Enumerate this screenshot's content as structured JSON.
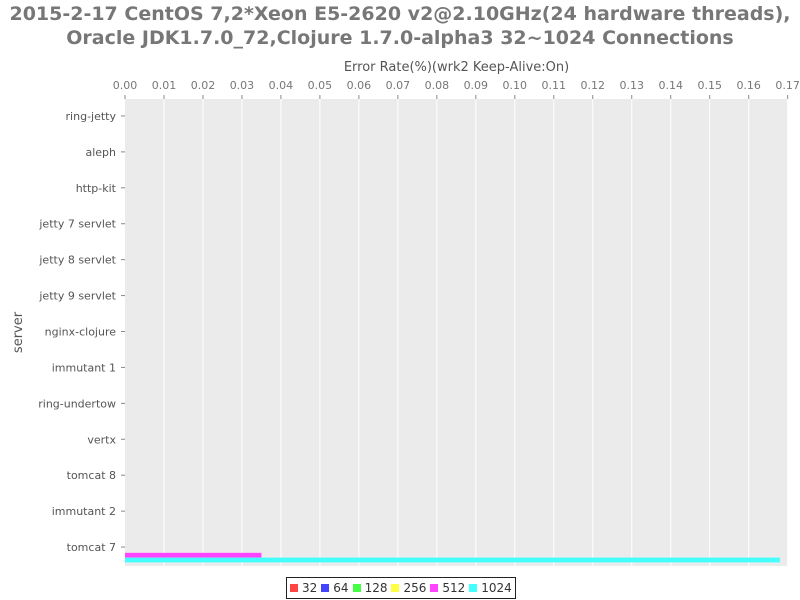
{
  "chart_data": {
    "type": "bar",
    "orientation": "horizontal",
    "title": "2015-2-17 CentOS 7,2*Xeon E5-2620 v2@2.10GHz(24 hardware threads),",
    "subtitle": "Oracle JDK1.7.0_72,Clojure 1.7.0-alpha3 32~1024 Connections",
    "xlabel": "Error Rate(%)(wrk2 Keep-Alive:On)",
    "ylabel": "server",
    "xlim": [
      0,
      0.17
    ],
    "xticks": [
      "0.00",
      "0.01",
      "0.02",
      "0.03",
      "0.04",
      "0.05",
      "0.06",
      "0.07",
      "0.08",
      "0.09",
      "0.10",
      "0.11",
      "0.12",
      "0.13",
      "0.14",
      "0.15",
      "0.16",
      "0.17"
    ],
    "xaxis_position": "top",
    "grid": true,
    "legend_position": "bottom",
    "categories": [
      "ring-jetty",
      "aleph",
      "http-kit",
      "jetty 7 servlet",
      "jetty 8 servlet",
      "jetty 9 servlet",
      "nginx-clojure",
      "immutant 1",
      "ring-undertow",
      "vertx",
      "tomcat 8",
      "immutant 2",
      "tomcat 7"
    ],
    "series": [
      {
        "name": "32",
        "color": "#ff4444",
        "values": [
          0,
          0,
          0,
          0,
          0,
          0,
          0,
          0,
          0,
          0,
          0,
          0,
          0
        ]
      },
      {
        "name": "64",
        "color": "#4444ff",
        "values": [
          0,
          0,
          0,
          0,
          0,
          0,
          0,
          0,
          0,
          0,
          0,
          0,
          0
        ]
      },
      {
        "name": "128",
        "color": "#44ff44",
        "values": [
          0,
          0,
          0,
          0,
          0,
          0,
          0,
          0,
          0,
          0,
          0,
          0,
          0
        ]
      },
      {
        "name": "256",
        "color": "#ffff44",
        "values": [
          0,
          0,
          0,
          0,
          0,
          0,
          0,
          0,
          0,
          0,
          0,
          0,
          0
        ]
      },
      {
        "name": "512",
        "color": "#ff44ff",
        "values": [
          0,
          0,
          0,
          0,
          0,
          0,
          0,
          0,
          0,
          0,
          0,
          0,
          0.035
        ]
      },
      {
        "name": "1024",
        "color": "#44ffff",
        "values": [
          0,
          0,
          0,
          0,
          0,
          0,
          0,
          0,
          0,
          0,
          0,
          0,
          0.168
        ]
      }
    ]
  }
}
